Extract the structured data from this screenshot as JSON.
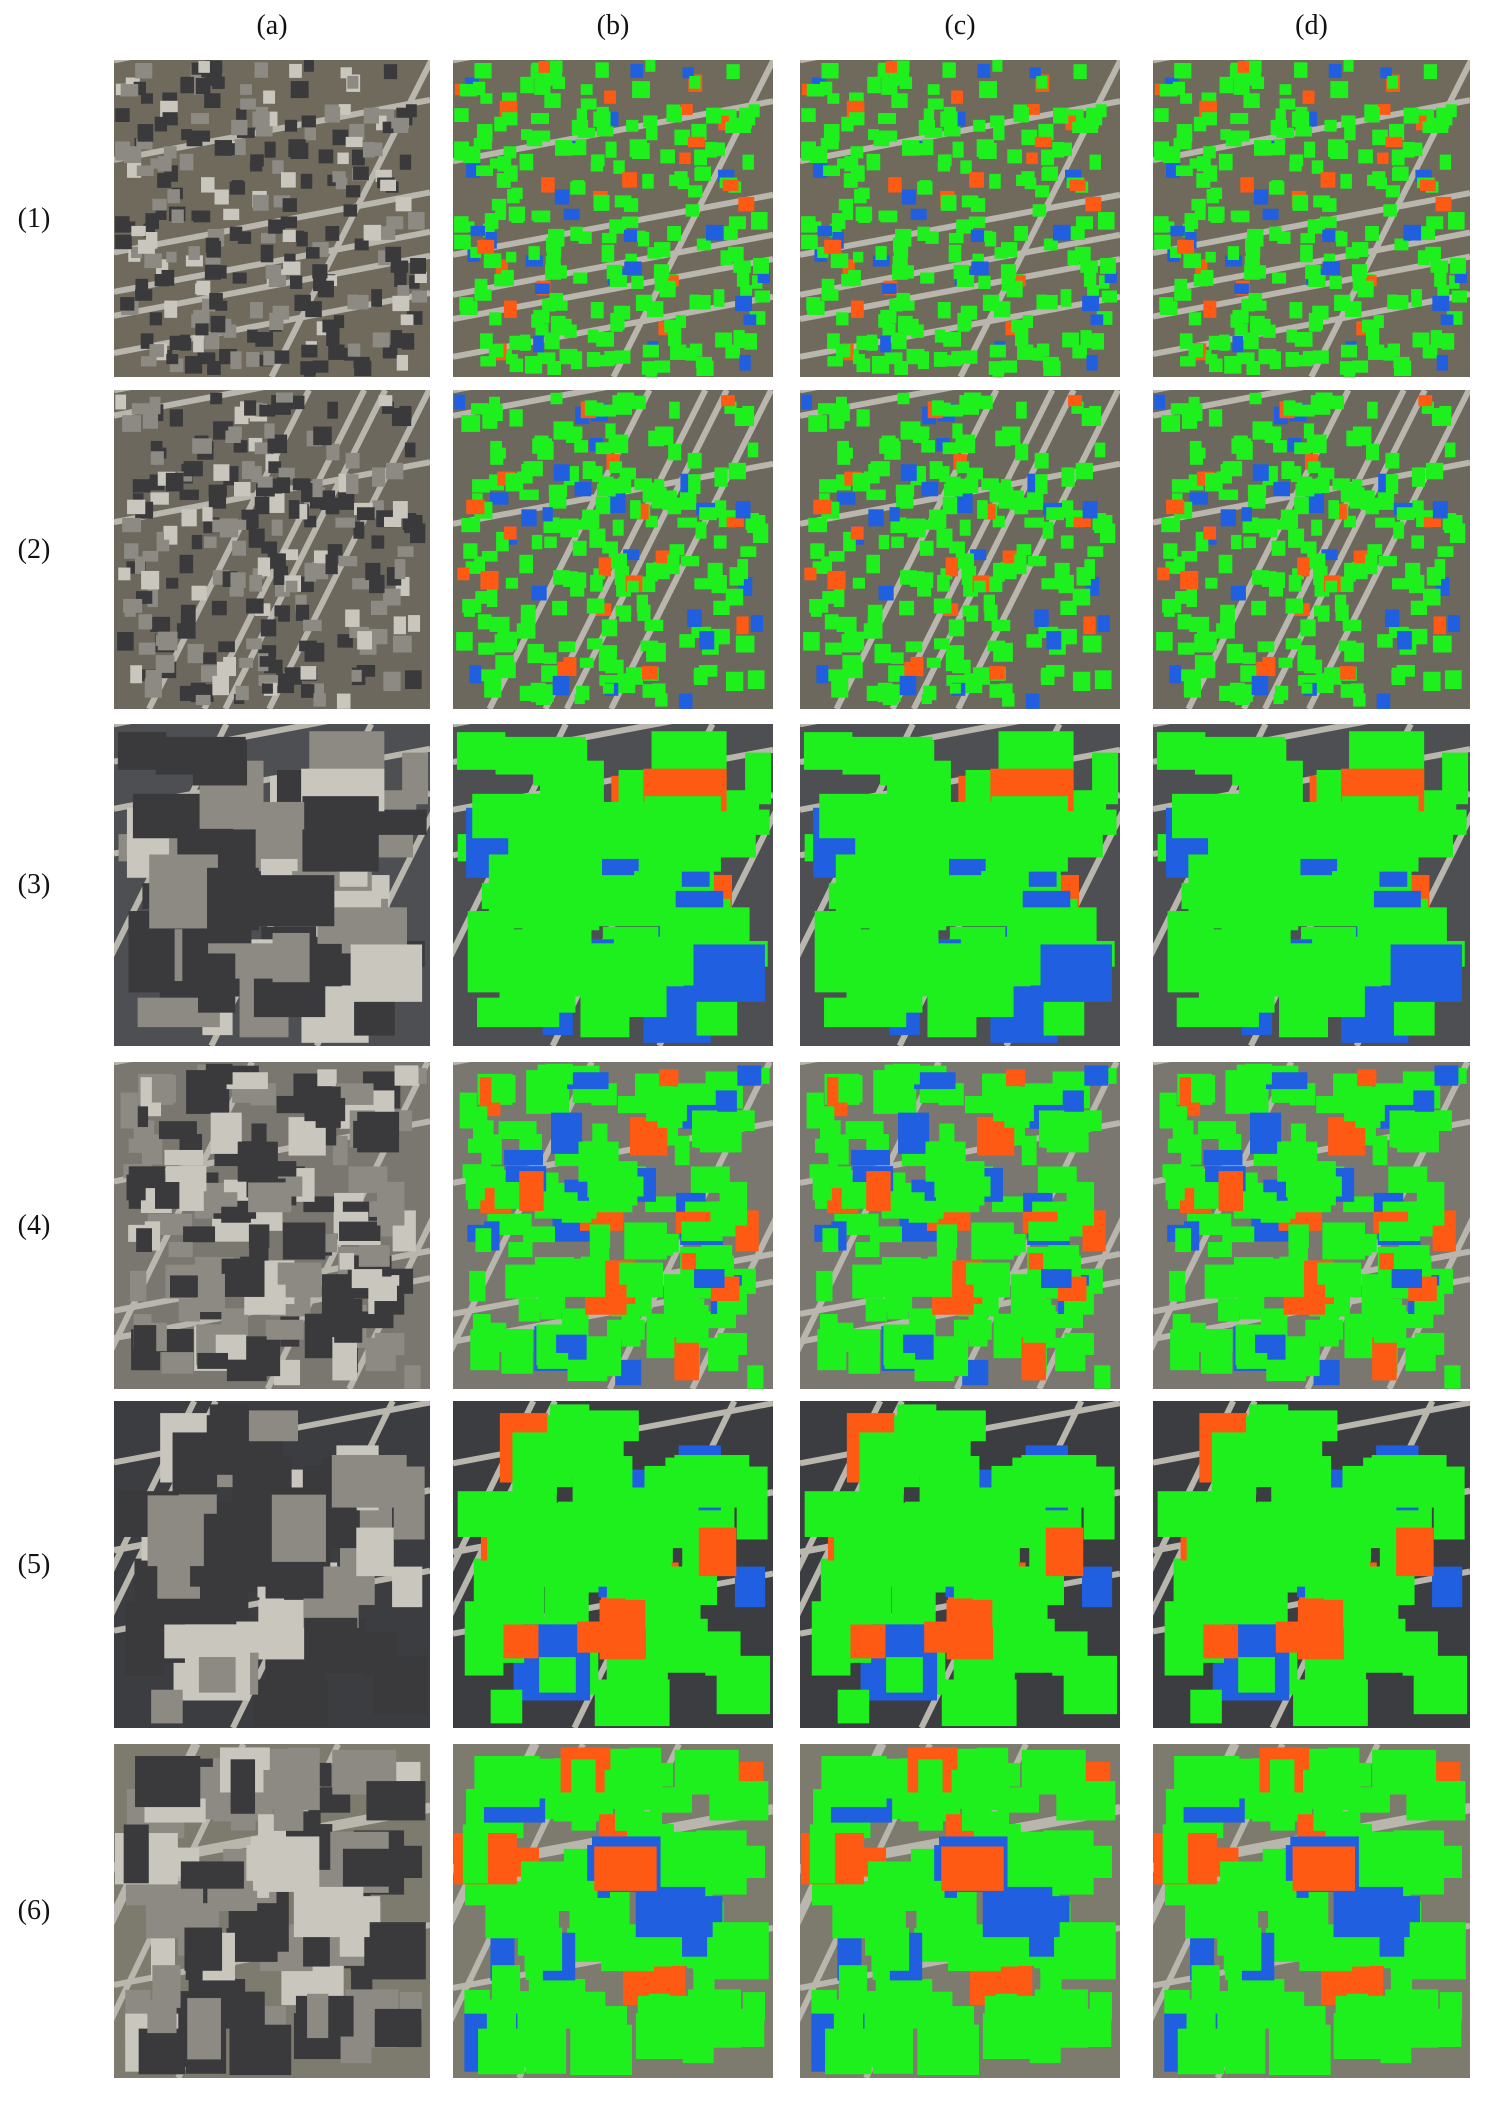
{
  "column_labels": [
    "(a)",
    "(b)",
    "(c)",
    "(d)"
  ],
  "row_labels": [
    "(1)",
    "(2)",
    "(3)",
    "(4)",
    "(5)",
    "(6)"
  ]
}
